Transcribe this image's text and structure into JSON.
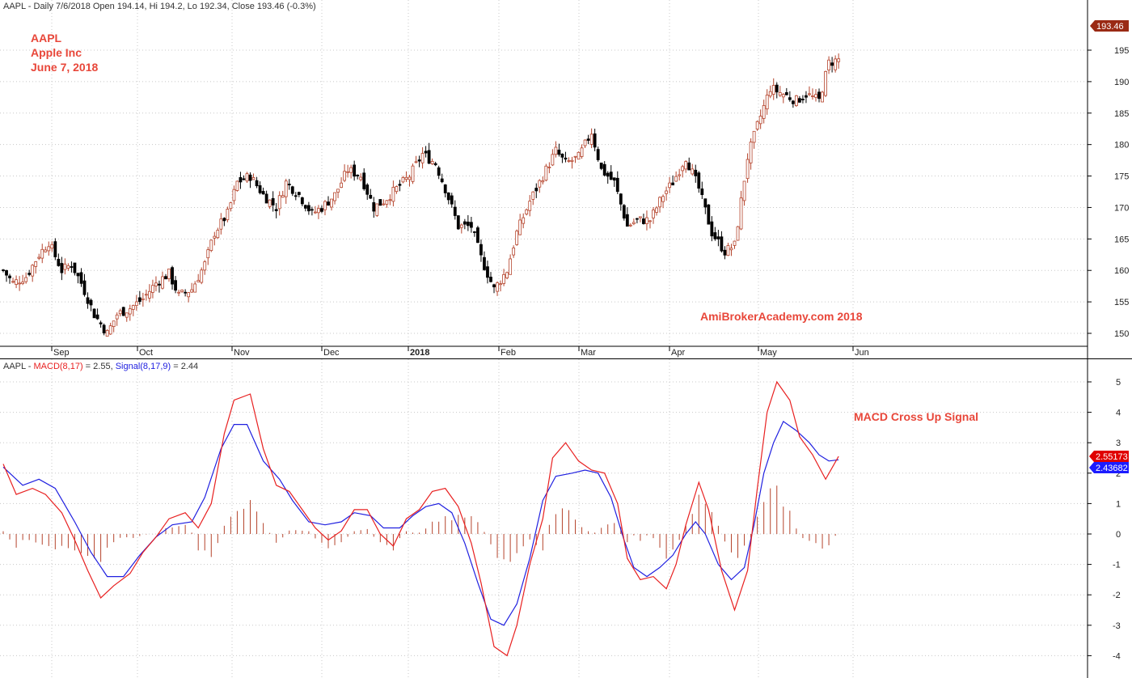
{
  "header": {
    "price_line": "AAPL - Daily 7/6/2018 Open 194.14, Hi 194.2, Lo 192.34, Close 193.46 (-0.3%)",
    "macd_prefix": "AAPL - ",
    "macd_text": "MACD(8,17)",
    "macd_value": " = 2.55, ",
    "signal_text": "Signal(8,17,9)",
    "signal_value": " = 2.44"
  },
  "annotations": {
    "symbol": "AAPL",
    "company": "Apple Inc",
    "date": "June 7, 2018",
    "watermark": "AmiBrokerAcademy.com  2018",
    "macd_note": "MACD Cross Up Signal"
  },
  "badges": {
    "last_price": "193.46",
    "macd_last": "2.55173",
    "signal_last": "2.43682"
  },
  "colors": {
    "up_candle": "#b5442c",
    "down_candle": "#000000",
    "macd_line": "#e82020",
    "signal_line": "#2020e0",
    "histogram": "#b5442c",
    "grid": "#c8c8c8",
    "badge_price": "#9a2a14",
    "badge_macd": "#e00000",
    "badge_signal": "#1c1cff"
  },
  "chart_data": [
    {
      "type": "candlestick",
      "x_labels": [
        "Sep",
        "Oct",
        "Nov",
        "Dec",
        "2018",
        "Feb",
        "Mar",
        "Apr",
        "May",
        "Jun"
      ],
      "ylim": [
        148,
        196
      ],
      "y_ticks": [
        150,
        155,
        160,
        165,
        170,
        175,
        180,
        185,
        190,
        195
      ],
      "anchors": [
        [
          0,
          160.0
        ],
        [
          3,
          158.0
        ],
        [
          7,
          159.0
        ],
        [
          11,
          162.5
        ],
        [
          14,
          164.5
        ],
        [
          18,
          160.0
        ],
        [
          21,
          161.0
        ],
        [
          24,
          158.0
        ],
        [
          28,
          153.0
        ],
        [
          32,
          150.0
        ],
        [
          35,
          153.0
        ],
        [
          39,
          154.0
        ],
        [
          43,
          155.5
        ],
        [
          47,
          158.0
        ],
        [
          51,
          159.5
        ],
        [
          54,
          156.0
        ],
        [
          58,
          157.0
        ],
        [
          62,
          161.0
        ],
        [
          65,
          166.0
        ],
        [
          69,
          169.0
        ],
        [
          72,
          174.0
        ],
        [
          76,
          175.0
        ],
        [
          80,
          172.0
        ],
        [
          84,
          170.0
        ],
        [
          87,
          174.0
        ],
        [
          91,
          172.0
        ],
        [
          95,
          169.0
        ],
        [
          98,
          170.0
        ],
        [
          102,
          172.0
        ],
        [
          106,
          176.0
        ],
        [
          110,
          175.0
        ],
        [
          114,
          170.0
        ],
        [
          117,
          171.0
        ],
        [
          121,
          173.0
        ],
        [
          125,
          175.0
        ],
        [
          129,
          178.5
        ],
        [
          133,
          177.0
        ],
        [
          136,
          173.0
        ],
        [
          140,
          167.0
        ],
        [
          144,
          167.0
        ],
        [
          147,
          162.0
        ],
        [
          151,
          157.0
        ],
        [
          155,
          160.0
        ],
        [
          158,
          166.0
        ],
        [
          162,
          171.0
        ],
        [
          166,
          175.0
        ],
        [
          170,
          179.0
        ],
        [
          173,
          177.0
        ],
        [
          177,
          178.0
        ],
        [
          181,
          182.0
        ],
        [
          184,
          176.0
        ],
        [
          188,
          174.0
        ],
        [
          192,
          167.0
        ],
        [
          195,
          168.0
        ],
        [
          199,
          168.0
        ],
        [
          203,
          172.0
        ],
        [
          206,
          174.0
        ],
        [
          210,
          178.0
        ],
        [
          214,
          173.0
        ],
        [
          218,
          166.0
        ],
        [
          222,
          163.0
        ],
        [
          225,
          164.0
        ],
        [
          229,
          178.0
        ],
        [
          232,
          183.0
        ],
        [
          236,
          189.0
        ],
        [
          240,
          188.0
        ],
        [
          244,
          187.0
        ],
        [
          247,
          188.0
        ],
        [
          251,
          187.0
        ],
        [
          254,
          193.0
        ],
        [
          257,
          193.5
        ]
      ]
    },
    {
      "type": "line",
      "ylim": [
        -4.5,
        5.6
      ],
      "y_ticks": [
        -4,
        -3,
        -2,
        -1,
        0,
        1,
        2,
        3,
        4,
        5
      ],
      "series": [
        {
          "name": "MACD(8,17)",
          "points": [
            [
              0,
              2.3
            ],
            [
              4,
              1.3
            ],
            [
              9,
              1.5
            ],
            [
              13,
              1.3
            ],
            [
              18,
              0.7
            ],
            [
              22,
              -0.2
            ],
            [
              26,
              -1.2
            ],
            [
              30,
              -2.1
            ],
            [
              34,
              -1.7
            ],
            [
              39,
              -1.3
            ],
            [
              43,
              -0.6
            ],
            [
              47,
              -0.1
            ],
            [
              51,
              0.5
            ],
            [
              56,
              0.7
            ],
            [
              60,
              0.2
            ],
            [
              64,
              1.0
            ],
            [
              68,
              3.3
            ],
            [
              71,
              4.4
            ],
            [
              76,
              4.6
            ],
            [
              80,
              2.8
            ],
            [
              84,
              1.6
            ],
            [
              88,
              1.4
            ],
            [
              92,
              0.8
            ],
            [
              96,
              0.2
            ],
            [
              100,
              -0.2
            ],
            [
              104,
              0.1
            ],
            [
              108,
              0.8
            ],
            [
              112,
              0.8
            ],
            [
              116,
              0.0
            ],
            [
              120,
              -0.4
            ],
            [
              124,
              0.5
            ],
            [
              128,
              0.8
            ],
            [
              132,
              1.4
            ],
            [
              136,
              1.5
            ],
            [
              140,
              0.9
            ],
            [
              144,
              -0.3
            ],
            [
              147,
              -1.6
            ],
            [
              151,
              -3.7
            ],
            [
              155,
              -4.0
            ],
            [
              158,
              -3.0
            ],
            [
              162,
              -1.0
            ],
            [
              166,
              0.5
            ],
            [
              169,
              2.5
            ],
            [
              173,
              3.0
            ],
            [
              177,
              2.4
            ],
            [
              181,
              2.1
            ],
            [
              185,
              2.0
            ],
            [
              189,
              1.0
            ],
            [
              192,
              -0.8
            ],
            [
              196,
              -1.5
            ],
            [
              200,
              -1.4
            ],
            [
              204,
              -1.8
            ],
            [
              207,
              -1.0
            ],
            [
              210,
              0.3
            ],
            [
              214,
              1.7
            ],
            [
              217,
              0.8
            ],
            [
              221,
              -1.2
            ],
            [
              225,
              -2.5
            ],
            [
              229,
              -1.2
            ],
            [
              232,
              1.5
            ],
            [
              235,
              4.0
            ],
            [
              238,
              5.0
            ],
            [
              242,
              4.4
            ],
            [
              245,
              3.2
            ],
            [
              249,
              2.6
            ],
            [
              253,
              1.8
            ],
            [
              257,
              2.55
            ]
          ]
        },
        {
          "name": "Signal(8,17,9)",
          "points": [
            [
              0,
              2.2
            ],
            [
              6,
              1.6
            ],
            [
              11,
              1.8
            ],
            [
              16,
              1.5
            ],
            [
              22,
              0.4
            ],
            [
              27,
              -0.6
            ],
            [
              32,
              -1.4
            ],
            [
              37,
              -1.4
            ],
            [
              42,
              -0.7
            ],
            [
              47,
              -0.1
            ],
            [
              52,
              0.3
            ],
            [
              58,
              0.4
            ],
            [
              62,
              1.2
            ],
            [
              67,
              2.8
            ],
            [
              71,
              3.6
            ],
            [
              75,
              3.6
            ],
            [
              80,
              2.4
            ],
            [
              85,
              1.8
            ],
            [
              89,
              1.1
            ],
            [
              94,
              0.4
            ],
            [
              99,
              0.3
            ],
            [
              104,
              0.4
            ],
            [
              108,
              0.7
            ],
            [
              113,
              0.6
            ],
            [
              117,
              0.2
            ],
            [
              122,
              0.2
            ],
            [
              126,
              0.6
            ],
            [
              130,
              0.9
            ],
            [
              134,
              1.0
            ],
            [
              138,
              0.7
            ],
            [
              142,
              -0.3
            ],
            [
              146,
              -1.6
            ],
            [
              150,
              -2.8
            ],
            [
              154,
              -3.0
            ],
            [
              158,
              -2.3
            ],
            [
              162,
              -0.8
            ],
            [
              166,
              1.1
            ],
            [
              170,
              1.9
            ],
            [
              175,
              2.0
            ],
            [
              179,
              2.1
            ],
            [
              183,
              2.0
            ],
            [
              187,
              1.2
            ],
            [
              191,
              -0.2
            ],
            [
              194,
              -1.1
            ],
            [
              198,
              -1.4
            ],
            [
              202,
              -1.1
            ],
            [
              206,
              -0.7
            ],
            [
              210,
              0.0
            ],
            [
              213,
              0.4
            ],
            [
              216,
              0.0
            ],
            [
              220,
              -1.0
            ],
            [
              224,
              -1.5
            ],
            [
              228,
              -1.1
            ],
            [
              231,
              0.3
            ],
            [
              234,
              2.0
            ],
            [
              237,
              3.0
            ],
            [
              240,
              3.7
            ],
            [
              244,
              3.4
            ],
            [
              248,
              3.0
            ],
            [
              251,
              2.6
            ],
            [
              254,
              2.4
            ],
            [
              257,
              2.44
            ]
          ]
        }
      ]
    }
  ]
}
